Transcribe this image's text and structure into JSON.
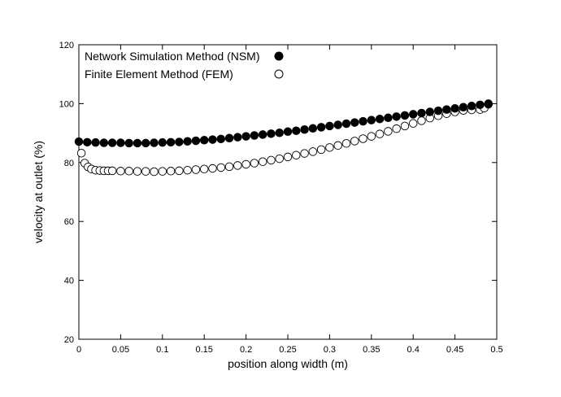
{
  "chart_data": {
    "type": "scatter",
    "xlabel": "position along width (m)",
    "ylabel": "velocity at outlet (%)",
    "xlim": [
      0,
      0.5
    ],
    "ylim": [
      20,
      120
    ],
    "x_ticks": [
      "0",
      "0.05",
      "0.1",
      "0.15",
      "0.2",
      "0.25",
      "0.3",
      "0.35",
      "0.4",
      "0.45",
      "0.5"
    ],
    "y_ticks": [
      "20",
      "40",
      "60",
      "80",
      "100",
      "120"
    ],
    "grid": false,
    "legend_position": "top-left",
    "series": [
      {
        "name": "Network Simulation Method (NSM)",
        "marker": "filled-circle",
        "color": "#000000",
        "x": [
          0.0,
          0.01,
          0.02,
          0.03,
          0.04,
          0.05,
          0.06,
          0.07,
          0.08,
          0.09,
          0.1,
          0.11,
          0.12,
          0.13,
          0.14,
          0.15,
          0.16,
          0.17,
          0.18,
          0.19,
          0.2,
          0.21,
          0.22,
          0.23,
          0.24,
          0.25,
          0.26,
          0.27,
          0.28,
          0.29,
          0.3,
          0.31,
          0.32,
          0.33,
          0.34,
          0.35,
          0.36,
          0.37,
          0.38,
          0.39,
          0.4,
          0.41,
          0.42,
          0.43,
          0.44,
          0.45,
          0.46,
          0.47,
          0.48,
          0.49
        ],
        "y": [
          87.1,
          86.9,
          86.8,
          86.7,
          86.7,
          86.7,
          86.6,
          86.6,
          86.6,
          86.7,
          86.8,
          86.9,
          87.0,
          87.2,
          87.4,
          87.6,
          87.8,
          88.0,
          88.3,
          88.6,
          88.9,
          89.2,
          89.5,
          89.8,
          90.1,
          90.5,
          90.8,
          91.2,
          91.6,
          92.0,
          92.4,
          92.8,
          93.2,
          93.6,
          94.0,
          94.4,
          94.8,
          95.2,
          95.6,
          96.0,
          96.4,
          96.8,
          97.2,
          97.6,
          98.0,
          98.4,
          98.8,
          99.2,
          99.6,
          100.0
        ]
      },
      {
        "name": "Finite Element Method (FEM)",
        "marker": "open-circle",
        "color": "#000000",
        "x": [
          0.003,
          0.007,
          0.011,
          0.015,
          0.02,
          0.025,
          0.03,
          0.035,
          0.04,
          0.05,
          0.06,
          0.07,
          0.08,
          0.09,
          0.1,
          0.11,
          0.12,
          0.13,
          0.14,
          0.15,
          0.16,
          0.17,
          0.18,
          0.19,
          0.2,
          0.21,
          0.22,
          0.23,
          0.24,
          0.25,
          0.26,
          0.27,
          0.28,
          0.29,
          0.3,
          0.31,
          0.32,
          0.33,
          0.34,
          0.35,
          0.36,
          0.37,
          0.38,
          0.39,
          0.4,
          0.41,
          0.42,
          0.43,
          0.44,
          0.45,
          0.46,
          0.47,
          0.48,
          0.485,
          0.49
        ],
        "y": [
          83.2,
          79.8,
          78.5,
          77.8,
          77.4,
          77.3,
          77.2,
          77.2,
          77.2,
          77.1,
          77.1,
          77.0,
          77.0,
          76.9,
          77.0,
          77.1,
          77.2,
          77.4,
          77.6,
          77.8,
          78.0,
          78.3,
          78.6,
          79.0,
          79.4,
          79.8,
          80.3,
          80.8,
          81.3,
          81.9,
          82.5,
          83.1,
          83.7,
          84.4,
          85.1,
          85.8,
          86.5,
          87.3,
          88.1,
          88.9,
          89.7,
          90.6,
          91.5,
          92.4,
          93.3,
          94.2,
          95.1,
          95.9,
          96.6,
          97.2,
          97.7,
          97.9,
          98.0,
          98.5,
          99.8
        ]
      }
    ]
  }
}
